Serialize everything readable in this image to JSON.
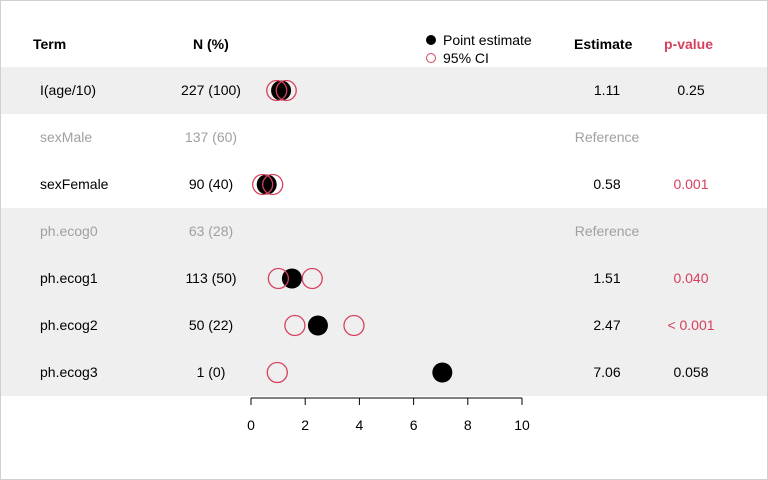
{
  "headers": {
    "term": "Term",
    "n": "N (%)",
    "estimate": "Estimate",
    "pvalue": "p-value"
  },
  "legend": {
    "point": "Point estimate",
    "ci": "95% CI"
  },
  "rows": [
    {
      "term": "I(age/10)",
      "n": "227 (100)",
      "estimate": "1.11",
      "pvalue": "0.25",
      "reference": false,
      "significant": false,
      "shaded": true
    },
    {
      "term": "sexMale",
      "n": "137 (60)",
      "estimate": "Reference",
      "pvalue": "",
      "reference": true,
      "significant": false,
      "shaded": false
    },
    {
      "term": "sexFemale",
      "n": "90 (40)",
      "estimate": "0.58",
      "pvalue": "0.001",
      "reference": false,
      "significant": true,
      "shaded": false
    },
    {
      "term": "ph.ecog0",
      "n": "63 (28)",
      "estimate": "Reference",
      "pvalue": "",
      "reference": true,
      "significant": false,
      "shaded": true
    },
    {
      "term": "ph.ecog1",
      "n": "113 (50)",
      "estimate": "1.51",
      "pvalue": "0.040",
      "reference": false,
      "significant": true,
      "shaded": true
    },
    {
      "term": "ph.ecog2",
      "n": "50 (22)",
      "estimate": "2.47",
      "pvalue": "< 0.001",
      "reference": false,
      "significant": true,
      "shaded": true
    },
    {
      "term": "ph.ecog3",
      "n": "1 (0)",
      "estimate": "7.06",
      "pvalue": "0.058",
      "reference": false,
      "significant": false,
      "shaded": true
    }
  ],
  "chart_data": {
    "type": "scatter",
    "x_range": [
      0,
      10
    ],
    "x_ticks": [
      "0",
      "2",
      "4",
      "6",
      "8",
      "10"
    ],
    "series": [
      {
        "name": "Point estimate",
        "values": [
          1.11,
          null,
          0.58,
          null,
          1.51,
          2.47,
          7.06
        ]
      },
      {
        "name": "95% CI",
        "lower": [
          0.95,
          null,
          0.43,
          null,
          1.01,
          1.62,
          0.97
        ],
        "upper": [
          1.3,
          null,
          0.8,
          null,
          2.26,
          3.8,
          null
        ]
      }
    ],
    "colors": {
      "point": "#000000",
      "ci": "#d6405e",
      "band": "#efefef",
      "reference_text": "#a0a0a0"
    }
  }
}
